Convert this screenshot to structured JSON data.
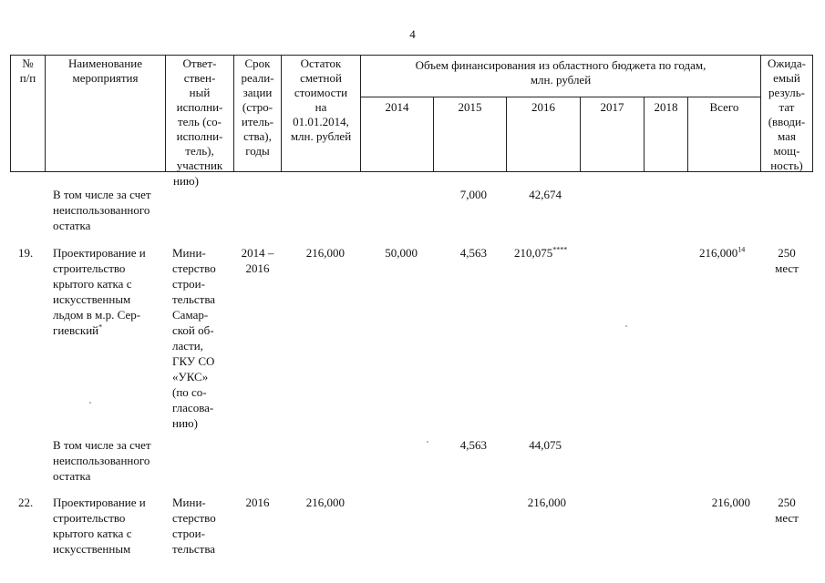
{
  "page_number": "4",
  "header": {
    "num": "№\nп/п",
    "name": "Наименование\nмероприятия",
    "resp": "Ответ-\nствен-\nный\nисполни-\nтель (со-\nисполни-\nтель),\nучастник",
    "term": "Срок\nреали-\nзации\n(стро-\nитель-\nства),\nгоды",
    "rest": "Остаток\nсметной\nстоимости\nна\n01.01.2014,\nмлн. рублей",
    "volume": "Объем финансирования из областного бюджета по годам,\nмлн. рублей",
    "years": [
      "2014",
      "2015",
      "2016",
      "2017",
      "2018",
      "Всего"
    ],
    "result": "Ожида-\nемый\nрезуль-\nтат\n(вводи-\nмая\nмощ-\nность)"
  },
  "rows": {
    "carry": "нию)",
    "r1": {
      "name": "В том числе за счет\nнеиспользованного\nостатка",
      "y2015": "7,000",
      "y2016": "42,674"
    },
    "r2": {
      "num": "19.",
      "name": "Проектирование и\nстроительство\nкрытого катка с\nискусственным\nльдом в м.р. Сер-\nгиевский",
      "name_sup": "*",
      "resp": "Мини-\nстерство\nстрои-\nтельства\nСамар-\nской об-\nласти,\nГКУ СО\n«УКС»\n(по со-\nгласова-\nнию)",
      "term": "2014 –\n2016",
      "rest": "216,000",
      "y2014": "50,000",
      "y2015": "4,563",
      "y2016": "210,075",
      "y2016_sup": "****",
      "total": "216,000",
      "total_sup": "14",
      "result": "250\nмест"
    },
    "r3": {
      "name": "В том числе за счет\nнеиспользованного\nостатка",
      "y2015": "4,563",
      "y2016": "44,075"
    },
    "r4": {
      "num": "22.",
      "name": "Проектирование и\nстроительство\nкрытого катка с\nискусственным",
      "resp": "Мини-\nстерство\nстрои-\nтельства",
      "term": "2016",
      "rest": "216,000",
      "y2016": "216,000",
      "total": "216,000",
      "result": "250\nмест"
    }
  }
}
